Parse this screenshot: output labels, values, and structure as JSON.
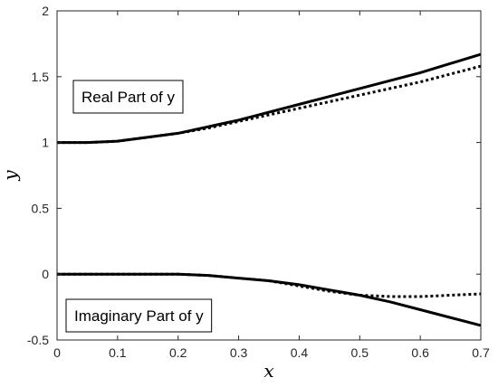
{
  "chart_data": {
    "type": "line",
    "title": "",
    "xlabel": "x",
    "ylabel": "y",
    "xlim": [
      0,
      0.7
    ],
    "ylim": [
      -0.5,
      2
    ],
    "xticks": [
      0,
      0.1,
      0.2,
      0.3,
      0.4,
      0.5,
      0.6,
      0.7
    ],
    "xtick_labels": [
      "0",
      "0.1",
      "0.2",
      "0.3",
      "0.4",
      "0.5",
      "0.6",
      "0.7"
    ],
    "yticks": [
      -0.5,
      0,
      0.5,
      1,
      1.5,
      2
    ],
    "ytick_labels": [
      "-0.5",
      "0",
      "0.5",
      "1",
      "1.5",
      "2"
    ],
    "grid": false,
    "annotations": [
      {
        "text": "Real Part of y"
      },
      {
        "text": "Imaginary Part of y"
      }
    ],
    "series": [
      {
        "style": "solid",
        "color": "#000000",
        "x": [
          0,
          0.05,
          0.1,
          0.15,
          0.2,
          0.25,
          0.3,
          0.35,
          0.4,
          0.45,
          0.5,
          0.55,
          0.6,
          0.65,
          0.7
        ],
        "y": [
          1.0,
          1.0,
          1.01,
          1.04,
          1.07,
          1.12,
          1.17,
          1.23,
          1.29,
          1.35,
          1.41,
          1.47,
          1.53,
          1.6,
          1.67
        ]
      },
      {
        "style": "dotted",
        "color": "#000000",
        "x": [
          0,
          0.05,
          0.1,
          0.15,
          0.2,
          0.25,
          0.3,
          0.35,
          0.4,
          0.45,
          0.5,
          0.55,
          0.6,
          0.65,
          0.7
        ],
        "y": [
          1.0,
          1.0,
          1.01,
          1.04,
          1.07,
          1.11,
          1.16,
          1.21,
          1.26,
          1.31,
          1.36,
          1.41,
          1.46,
          1.52,
          1.58
        ]
      },
      {
        "style": "solid",
        "color": "#000000",
        "x": [
          0,
          0.05,
          0.1,
          0.15,
          0.2,
          0.25,
          0.3,
          0.35,
          0.4,
          0.45,
          0.5,
          0.55,
          0.6,
          0.65,
          0.7
        ],
        "y": [
          0.0,
          0.0,
          0.0,
          0.0,
          0.0,
          -0.01,
          -0.03,
          -0.05,
          -0.08,
          -0.12,
          -0.16,
          -0.21,
          -0.27,
          -0.33,
          -0.39
        ]
      },
      {
        "style": "dotted",
        "color": "#000000",
        "x": [
          0,
          0.05,
          0.1,
          0.15,
          0.2,
          0.25,
          0.3,
          0.35,
          0.4,
          0.45,
          0.5,
          0.55,
          0.6,
          0.65,
          0.7
        ],
        "y": [
          0.0,
          0.0,
          0.0,
          0.0,
          0.0,
          -0.01,
          -0.03,
          -0.05,
          -0.09,
          -0.13,
          -0.16,
          -0.17,
          -0.17,
          -0.16,
          -0.15
        ]
      }
    ]
  }
}
